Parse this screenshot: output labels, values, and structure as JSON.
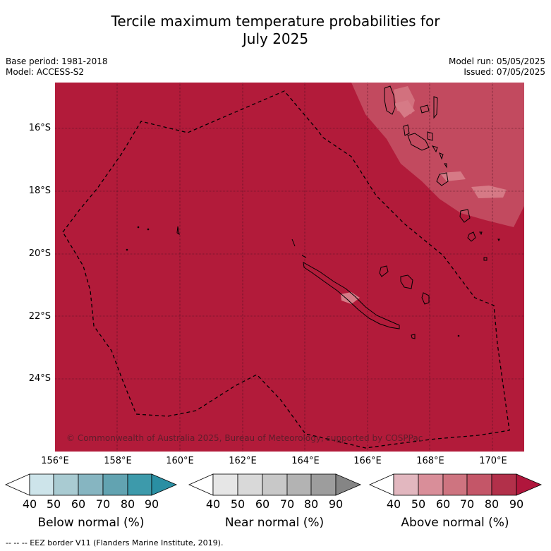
{
  "title_line1": "Tercile maximum temperature probabilities for",
  "title_line2": "July 2025",
  "base_period": "Base period: 1981-2018",
  "model": "Model: ACCESS-S2",
  "model_run": "Model run: 05/05/2025",
  "issued": "Issued: 07/05/2025",
  "lat_labels": [
    "16°S",
    "18°S",
    "20°S",
    "22°S",
    "24°S"
  ],
  "lon_labels": [
    "156°E",
    "158°E",
    "160°E",
    "162°E",
    "164°E",
    "166°E",
    "168°E",
    "170°E"
  ],
  "copyright": "© Commonwealth of Australia 2025, Bureau of Meteorology, supported by COSPPac",
  "legend": {
    "below": {
      "label": "Below normal (%)",
      "ticks": [
        "40",
        "50",
        "60",
        "70",
        "80",
        "90"
      ],
      "colors": [
        "#ffffff",
        "#cde4ea",
        "#a9cbd2",
        "#86b5c1",
        "#62a3b1",
        "#3d9aab",
        "#2a8fa3"
      ]
    },
    "near": {
      "label": "Near normal (%)",
      "ticks": [
        "40",
        "50",
        "60",
        "70",
        "80",
        "90"
      ],
      "colors": [
        "#ffffff",
        "#e6e6e6",
        "#d9d9d9",
        "#c8c8c8",
        "#b3b3b3",
        "#9d9d9d",
        "#858585"
      ]
    },
    "above": {
      "label": "Above normal (%)",
      "ticks": [
        "40",
        "50",
        "60",
        "70",
        "80",
        "90"
      ],
      "colors": [
        "#ffffff",
        "#e2b7bf",
        "#d98e99",
        "#ce7480",
        "#c45668",
        "#b2304a",
        "#b0163c"
      ]
    }
  },
  "footnote": "--  --  -- EEZ border V11 (Flanders Marine Institute, 2019).",
  "colors": {
    "map_fill": "#b21b3a",
    "lighter_region": "#c24a5f",
    "lightest_region": "#d67a86"
  }
}
